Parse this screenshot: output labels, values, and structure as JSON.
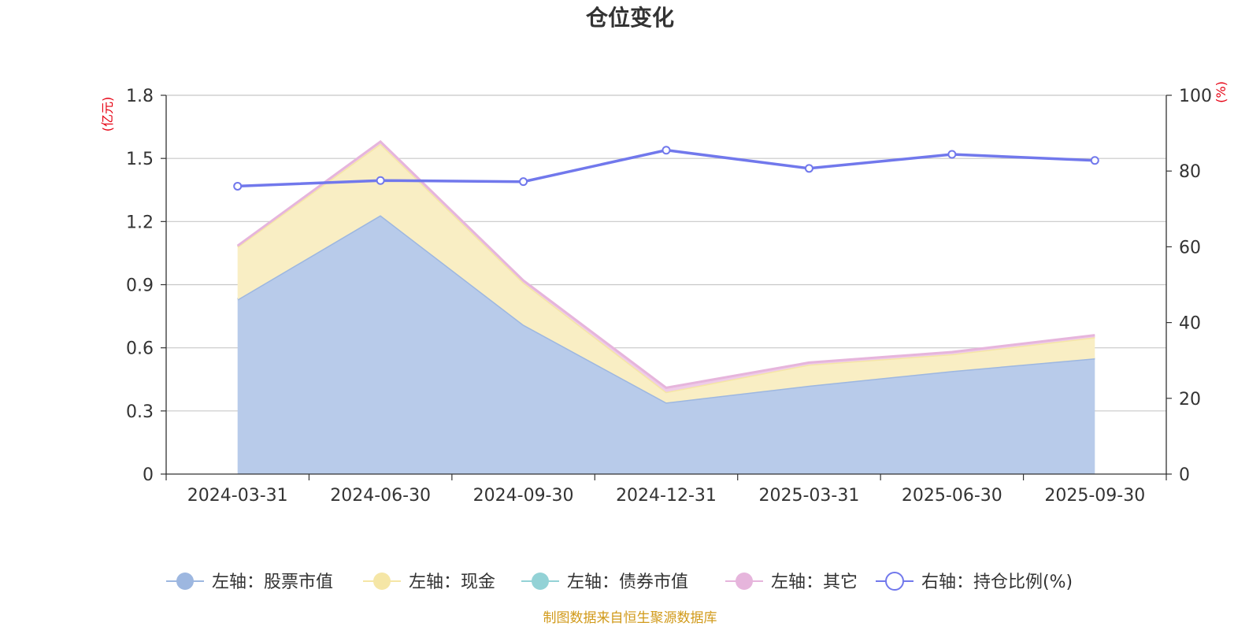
{
  "chart_data": {
    "type": "area",
    "title": "仓位变化",
    "x": [
      "2024-03-31",
      "2024-06-30",
      "2024-09-30",
      "2024-12-31",
      "2025-03-31",
      "2025-06-30",
      "2025-09-30"
    ],
    "left_axis": {
      "unit": "(亿元)",
      "ylim": [
        0,
        1.8
      ],
      "ticks": [
        "0",
        "0.3",
        "0.6",
        "0.9",
        "1.2",
        "1.5",
        "1.8"
      ]
    },
    "right_axis": {
      "unit": "(%)",
      "ylim": [
        0,
        100
      ],
      "ticks": [
        "0",
        "20",
        "40",
        "60",
        "80",
        "100"
      ]
    },
    "stacked_series": [
      {
        "name": "左轴：股票市值",
        "color": "#9db7e0",
        "fill": "#b8cbea",
        "values": [
          0.83,
          1.23,
          0.71,
          0.34,
          0.42,
          0.49,
          0.55
        ]
      },
      {
        "name": "左轴：现金",
        "color": "#f5e6a6",
        "fill": "#f9eec4",
        "values": [
          0.25,
          0.34,
          0.2,
          0.05,
          0.1,
          0.08,
          0.1
        ]
      },
      {
        "name": "左轴：债券市值",
        "color": "#93d2d6",
        "fill": "#b3e0e2",
        "values": [
          0,
          0,
          0,
          0,
          0,
          0,
          0
        ]
      },
      {
        "name": "左轴：其它",
        "color": "#e6b5dc",
        "fill": "#efcbe8",
        "values": [
          0.005,
          0.01,
          0.01,
          0.02,
          0.01,
          0.01,
          0.01
        ]
      }
    ],
    "line_series": {
      "name": "右轴：持仓比例(%)",
      "color": "#7178ec",
      "values": [
        76,
        77.5,
        77.2,
        85.5,
        80.7,
        84.4,
        82.8
      ]
    },
    "grid": true,
    "legend": "bottom"
  },
  "source_text": "制图数据来自恒生聚源数据库"
}
